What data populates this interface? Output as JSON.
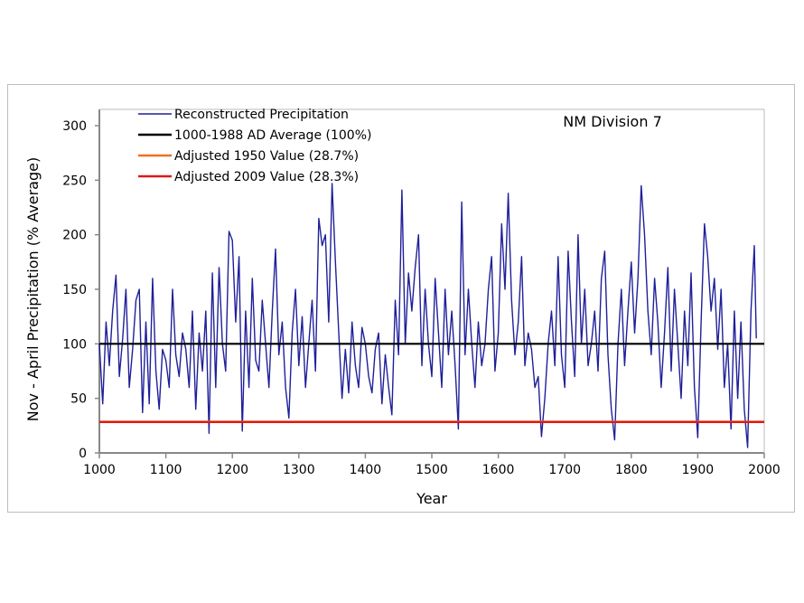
{
  "chart_data": {
    "type": "line",
    "title": "",
    "annotation": "NM Division 7",
    "xlabel": "Year",
    "ylabel": "Nov - April Precipitation (% Average)",
    "xlim": [
      1000,
      2000
    ],
    "ylim": [
      0,
      300
    ],
    "xticks": [
      1000,
      1100,
      1200,
      1300,
      1400,
      1500,
      1600,
      1700,
      1800,
      1900,
      2000
    ],
    "yticks": [
      0,
      50,
      100,
      150,
      200,
      250,
      300
    ],
    "grid": false,
    "legend_placement": "top-left",
    "series": [
      {
        "name": "Reconstructed Precipitation",
        "color": "#1f1f9a",
        "x_start": 1000,
        "x_step": 5,
        "x_last": 1988,
        "values": [
          100,
          45,
          120,
          80,
          130,
          163,
          70,
          105,
          150,
          60,
          95,
          140,
          150,
          37,
          120,
          45,
          160,
          75,
          40,
          95,
          85,
          60,
          150,
          90,
          70,
          110,
          95,
          60,
          130,
          40,
          110,
          75,
          130,
          18,
          165,
          60,
          170,
          100,
          75,
          203,
          195,
          120,
          180,
          20,
          130,
          60,
          160,
          85,
          75,
          140,
          100,
          60,
          130,
          187,
          90,
          120,
          60,
          32,
          110,
          150,
          80,
          125,
          60,
          100,
          140,
          75,
          215,
          190,
          200,
          120,
          247,
          175,
          110,
          50,
          95,
          55,
          120,
          80,
          60,
          115,
          100,
          70,
          55,
          95,
          110,
          45,
          90,
          60,
          35,
          140,
          90,
          241,
          100,
          165,
          130,
          170,
          200,
          80,
          150,
          100,
          70,
          160,
          110,
          60,
          150,
          90,
          130,
          80,
          22,
          230,
          90,
          150,
          100,
          60,
          120,
          80,
          100,
          150,
          180,
          75,
          110,
          210,
          150,
          238,
          140,
          90,
          120,
          180,
          80,
          110,
          95,
          60,
          70,
          15,
          50,
          100,
          130,
          80,
          180,
          90,
          60,
          185,
          120,
          70,
          200,
          100,
          150,
          80,
          100,
          130,
          75,
          160,
          185,
          90,
          40,
          12,
          100,
          150,
          80,
          130,
          175,
          110,
          160,
          245,
          200,
          130,
          90,
          160,
          120,
          60,
          110,
          170,
          75,
          150,
          100,
          50,
          130,
          80,
          165,
          60,
          14,
          120,
          210,
          180,
          130,
          160,
          95,
          150,
          60,
          100,
          22,
          130,
          50,
          120,
          40,
          5,
          130,
          190,
          105
        ]
      },
      {
        "name": "1000-1988 AD Average (100%)",
        "color": "#000000",
        "constant": 100
      },
      {
        "name": "Adjusted 1950 Value  (28.7%)",
        "color": "#f07020",
        "constant": 28.7
      },
      {
        "name": "Adjusted 2009 Value  (28.3%)",
        "color": "#e01818",
        "constant": 28.3
      }
    ]
  }
}
